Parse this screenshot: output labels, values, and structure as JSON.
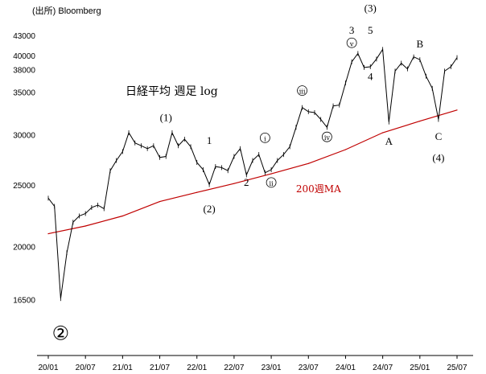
{
  "source": "(出所) Bloomberg",
  "chart_data": {
    "type": "line",
    "title": "日経平均 週足 log",
    "y_scale": "log",
    "ylim": [
      13500,
      46000
    ],
    "x_range": [
      "2020-01",
      "2025-07"
    ],
    "y_ticks": [
      {
        "value": 43000,
        "label": "43000"
      },
      {
        "value": 40000,
        "label": "40000"
      },
      {
        "value": 38000,
        "label": "38000"
      },
      {
        "value": 35000,
        "label": "35000"
      },
      {
        "value": 30000,
        "label": "30000"
      },
      {
        "value": 25000,
        "label": "25000"
      },
      {
        "value": 20000,
        "label": "20000"
      },
      {
        "value": 16500,
        "label": "16500"
      }
    ],
    "x_ticks": [
      {
        "value": "2020-01",
        "label": "20/01"
      },
      {
        "value": "2020-07",
        "label": "20/07"
      },
      {
        "value": "2021-01",
        "label": "21/01"
      },
      {
        "value": "2021-07",
        "label": "21/07"
      },
      {
        "value": "2022-01",
        "label": "22/01"
      },
      {
        "value": "2022-07",
        "label": "22/07"
      },
      {
        "value": "2023-01",
        "label": "23/01"
      },
      {
        "value": "2023-07",
        "label": "23/07"
      },
      {
        "value": "2024-01",
        "label": "24/01"
      },
      {
        "value": "2024-07",
        "label": "24/07"
      },
      {
        "value": "2025-01",
        "label": "25/01"
      },
      {
        "value": "2025-07",
        "label": "25/07"
      }
    ],
    "series": [
      {
        "type": "line",
        "color": "#000000",
        "points": [
          [
            "2020-01",
            23900
          ],
          [
            "2020-02",
            23200
          ],
          [
            "2020-03",
            16600
          ],
          [
            "2020-04",
            19600
          ],
          [
            "2020-05",
            21900
          ],
          [
            "2020-06",
            22400
          ],
          [
            "2020-07",
            22600
          ],
          [
            "2020-08",
            23100
          ],
          [
            "2020-09",
            23300
          ],
          [
            "2020-10",
            23000
          ],
          [
            "2020-11",
            26400
          ],
          [
            "2020-12",
            27400
          ],
          [
            "2021-01",
            28300
          ],
          [
            "2021-02",
            30300
          ],
          [
            "2021-03",
            29200
          ],
          [
            "2021-04",
            28900
          ],
          [
            "2021-05",
            28600
          ],
          [
            "2021-06",
            28900
          ],
          [
            "2021-07",
            27700
          ],
          [
            "2021-08",
            27800
          ],
          [
            "2021-09",
            30300
          ],
          [
            "2021-10",
            28900
          ],
          [
            "2021-11",
            29600
          ],
          [
            "2021-12",
            28800
          ],
          [
            "2022-01",
            27200
          ],
          [
            "2022-02",
            26500
          ],
          [
            "2022-03",
            25100
          ],
          [
            "2022-04",
            26800
          ],
          [
            "2022-05",
            26700
          ],
          [
            "2022-06",
            26400
          ],
          [
            "2022-07",
            27800
          ],
          [
            "2022-08",
            28600
          ],
          [
            "2022-09",
            26000
          ],
          [
            "2022-10",
            27400
          ],
          [
            "2022-11",
            28000
          ],
          [
            "2022-12",
            26200
          ],
          [
            "2023-01",
            26500
          ],
          [
            "2023-02",
            27400
          ],
          [
            "2023-03",
            28000
          ],
          [
            "2023-04",
            28800
          ],
          [
            "2023-05",
            30900
          ],
          [
            "2023-06",
            33200
          ],
          [
            "2023-07",
            32700
          ],
          [
            "2023-08",
            32600
          ],
          [
            "2023-09",
            31800
          ],
          [
            "2023-10",
            30900
          ],
          [
            "2023-11",
            33400
          ],
          [
            "2023-12",
            33500
          ],
          [
            "2024-01",
            36300
          ],
          [
            "2024-02",
            39200
          ],
          [
            "2024-03",
            40400
          ],
          [
            "2024-04",
            38400
          ],
          [
            "2024-05",
            38500
          ],
          [
            "2024-06",
            39600
          ],
          [
            "2024-07",
            41000
          ],
          [
            "2024-08",
            31500
          ],
          [
            "2024-09",
            37900
          ],
          [
            "2024-10",
            39000
          ],
          [
            "2024-11",
            38200
          ],
          [
            "2024-12",
            39900
          ],
          [
            "2025-01",
            39500
          ],
          [
            "2025-02",
            37200
          ],
          [
            "2025-03",
            35600
          ],
          [
            "2025-04",
            31800
          ],
          [
            "2025-05",
            37900
          ],
          [
            "2025-06",
            38500
          ],
          [
            "2025-07",
            39800
          ]
        ]
      },
      {
        "name": "200週MA",
        "type": "line",
        "color": "#c00000",
        "points": [
          [
            "2020-01",
            21000
          ],
          [
            "2020-07",
            21600
          ],
          [
            "2021-01",
            22400
          ],
          [
            "2021-07",
            23600
          ],
          [
            "2022-01",
            24400
          ],
          [
            "2022-07",
            25200
          ],
          [
            "2023-01",
            26100
          ],
          [
            "2023-07",
            27100
          ],
          [
            "2024-01",
            28500
          ],
          [
            "2024-07",
            30300
          ],
          [
            "2025-01",
            31600
          ],
          [
            "2025-07",
            32900
          ]
        ]
      }
    ],
    "annotations": [
      {
        "text": "(1)",
        "x": "2021-08",
        "y": 31600
      },
      {
        "text": "1",
        "x": "2022-03",
        "y": 29100
      },
      {
        "text": "(2)",
        "x": "2022-03",
        "y": 22700
      },
      {
        "text": "2",
        "x": "2022-09",
        "y": 25000
      },
      {
        "text": "ⅰ",
        "x": "2022-12",
        "y": 29400
      },
      {
        "text": "ⅱ",
        "x": "2023-01",
        "y": 25000
      },
      {
        "text": "ⅲ",
        "x": "2023-06",
        "y": 34900
      },
      {
        "text": "ⅳ",
        "x": "2023-10",
        "y": 29500
      },
      {
        "text": "ⅴ",
        "x": "2024-02",
        "y": 41500
      },
      {
        "text": "3",
        "x": "2024-02",
        "y": 43400
      },
      {
        "text": "(3)",
        "x": "2024-05",
        "y": 47000
      },
      {
        "text": "5",
        "x": "2024-05",
        "y": 43400
      },
      {
        "text": "4",
        "x": "2024-05",
        "y": 36700
      },
      {
        "text": "A",
        "x": "2024-08",
        "y": 29000
      },
      {
        "text": "B",
        "x": "2025-01",
        "y": 41300
      },
      {
        "text": "C",
        "x": "2025-04",
        "y": 29500
      },
      {
        "text": "(4)",
        "x": "2025-04",
        "y": 27300
      },
      {
        "text": "②",
        "x": "2020-03",
        "y": 14300
      }
    ]
  }
}
